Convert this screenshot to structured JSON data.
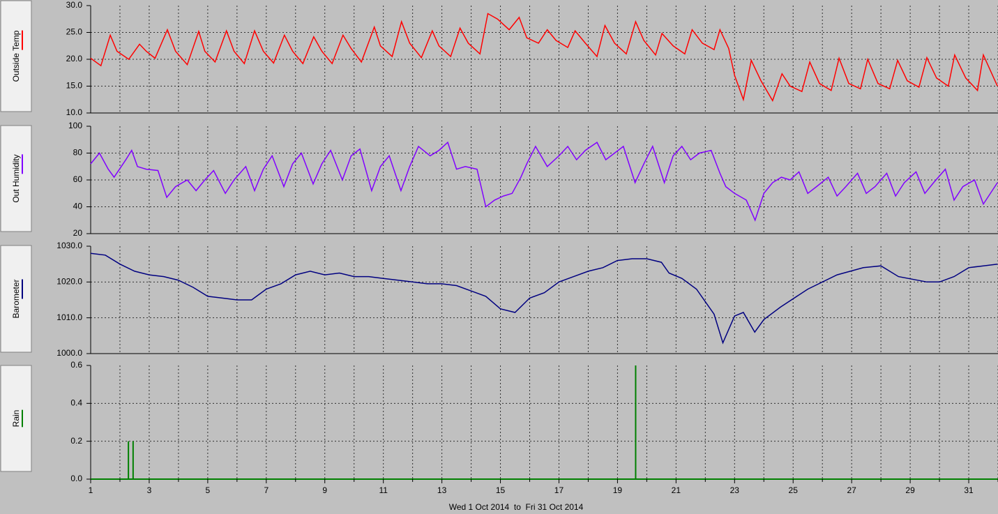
{
  "chart_data": [
    {
      "type": "line",
      "ylabel": "Outside Temp",
      "color": "#ff0000",
      "x": [
        1,
        1.35,
        1.67,
        1.9,
        2.3,
        2.67,
        2.9,
        3.2,
        3.62,
        3.9,
        4.3,
        4.69,
        4.9,
        5.25,
        5.64,
        5.9,
        6.25,
        6.6,
        6.9,
        7.25,
        7.62,
        7.9,
        8.25,
        8.62,
        8.9,
        9.25,
        9.62,
        9.9,
        10.25,
        10.69,
        10.9,
        11.3,
        11.62,
        11.9,
        12.3,
        12.67,
        12.9,
        13.3,
        13.62,
        13.9,
        14.3,
        14.57,
        14.9,
        15.3,
        15.64,
        15.9,
        16.3,
        16.6,
        16.9,
        17.3,
        17.55,
        17.9,
        18.3,
        18.57,
        18.9,
        19.3,
        19.62,
        19.9,
        20.3,
        20.52,
        20.9,
        21.3,
        21.55,
        21.9,
        22.3,
        22.5,
        22.8,
        23.0,
        23.3,
        23.57,
        23.9,
        24.3,
        24.62,
        24.9,
        25.3,
        25.57,
        25.9,
        26.3,
        26.57,
        26.9,
        27.3,
        27.55,
        27.9,
        28.3,
        28.57,
        28.9,
        29.3,
        29.57,
        29.9,
        30.3,
        30.52,
        30.9,
        31.3,
        31.5,
        31.98
      ],
      "values": [
        20.2,
        18.8,
        24.5,
        21.5,
        20,
        22.8,
        21.5,
        20.2,
        25.5,
        21.5,
        19,
        25.2,
        21.5,
        19.5,
        25.3,
        21.5,
        19.2,
        25.3,
        21.5,
        19.3,
        24.5,
        21.5,
        19.2,
        24.2,
        21.5,
        19.2,
        24.5,
        22,
        19.5,
        26,
        22.5,
        20.5,
        27,
        23,
        20.3,
        25.3,
        22.5,
        20.5,
        25.8,
        23,
        21,
        28.5,
        27.5,
        25.5,
        27.8,
        24,
        23,
        25.5,
        23.5,
        22.2,
        25.3,
        23,
        20.5,
        26.3,
        23,
        21,
        27,
        23.5,
        20.8,
        24.8,
        22.5,
        21,
        25.5,
        23,
        21.8,
        25.5,
        22,
        17,
        12.5,
        19.8,
        16,
        12.3,
        17.3,
        15,
        14,
        19.5,
        15.5,
        14.2,
        20.2,
        15.5,
        14.5,
        20,
        15.5,
        14.5,
        19.8,
        16,
        14.8,
        20.3,
        16.5,
        15,
        20.8,
        16.5,
        14.2,
        20.8,
        15
      ],
      "ylim": [
        10,
        30
      ],
      "yticks": [
        {
          "value": 10,
          "label": "10.0"
        },
        {
          "value": 15,
          "label": "15.0"
        },
        {
          "value": 20,
          "label": "20.0"
        },
        {
          "value": 25,
          "label": "25.0"
        },
        {
          "value": 30,
          "label": "30.0"
        }
      ]
    },
    {
      "type": "line",
      "ylabel": "Out Humidity",
      "color": "#8000ff",
      "x": [
        1,
        1.3,
        1.6,
        1.8,
        2.2,
        2.4,
        2.6,
        2.9,
        3.3,
        3.6,
        3.9,
        4.3,
        4.6,
        4.9,
        5.2,
        5.6,
        5.9,
        6.3,
        6.6,
        6.9,
        7.2,
        7.6,
        7.9,
        8.2,
        8.6,
        8.9,
        9.2,
        9.6,
        9.9,
        10.2,
        10.6,
        10.9,
        11.2,
        11.6,
        11.9,
        12.2,
        12.6,
        12.9,
        13.2,
        13.5,
        13.8,
        14.2,
        14.5,
        14.8,
        15.1,
        15.4,
        15.7,
        15.9,
        16.2,
        16.6,
        17.0,
        17.3,
        17.6,
        17.9,
        18.3,
        18.6,
        18.9,
        19.2,
        19.6,
        19.9,
        20.2,
        20.6,
        20.9,
        21.2,
        21.5,
        21.8,
        22.2,
        22.5,
        22.7,
        23.0,
        23.4,
        23.7,
        24.0,
        24.3,
        24.6,
        24.9,
        25.2,
        25.5,
        25.8,
        26.2,
        26.5,
        26.8,
        27.2,
        27.5,
        27.8,
        28.2,
        28.5,
        28.8,
        29.2,
        29.5,
        29.8,
        30.2,
        30.5,
        30.8,
        31.2,
        31.5,
        31.98
      ],
      "values": [
        72,
        80,
        68,
        62,
        75,
        82,
        70,
        68,
        67,
        47,
        55,
        60,
        52,
        60,
        67,
        50,
        60,
        70,
        52,
        68,
        78,
        55,
        72,
        80,
        57,
        72,
        82,
        60,
        78,
        83,
        52,
        70,
        78,
        52,
        70,
        85,
        78,
        82,
        88,
        68,
        70,
        68,
        40,
        45,
        48,
        50,
        62,
        72,
        85,
        70,
        78,
        85,
        75,
        82,
        88,
        75,
        80,
        85,
        58,
        72,
        85,
        58,
        78,
        85,
        75,
        80,
        82,
        65,
        55,
        50,
        45,
        30,
        50,
        58,
        62,
        60,
        66,
        50,
        55,
        62,
        48,
        55,
        65,
        50,
        55,
        65,
        48,
        58,
        66,
        50,
        58,
        68,
        45,
        55,
        60,
        42,
        58
      ],
      "ylim": [
        20,
        100
      ],
      "yticks": [
        20,
        40,
        60,
        80,
        100
      ]
    },
    {
      "type": "line",
      "ylabel": "Barometer",
      "color": "#000080",
      "x": [
        1,
        1.5,
        2,
        2.5,
        3,
        3.5,
        4,
        4.5,
        5,
        5.5,
        6,
        6.5,
        7,
        7.5,
        8,
        8.5,
        9,
        9.5,
        10,
        10.5,
        11,
        11.5,
        12,
        12.5,
        13,
        13.5,
        14,
        14.5,
        15,
        15.5,
        16,
        16.5,
        17,
        17.5,
        18,
        18.5,
        19,
        19.5,
        20,
        20.5,
        20.76,
        21.2,
        21.7,
        22.3,
        22.6,
        23.0,
        23.3,
        23.69,
        24.0,
        24.57,
        25.5,
        26.5,
        27.4,
        28.0,
        28.6,
        29.57,
        30.0,
        30.5,
        31,
        31.5,
        31.98
      ],
      "values": [
        1028,
        1027.5,
        1025,
        1023,
        1022,
        1021.5,
        1020.5,
        1018.5,
        1016,
        1015.5,
        1015,
        1015,
        1018,
        1019.5,
        1022,
        1023,
        1022,
        1022.5,
        1021.5,
        1021.5,
        1021,
        1020.5,
        1020,
        1019.5,
        1019.5,
        1019,
        1017.5,
        1016,
        1012.5,
        1011.5,
        1015.5,
        1017,
        1020,
        1021.5,
        1023,
        1024,
        1026,
        1026.5,
        1026.5,
        1025.5,
        1022.5,
        1021,
        1018,
        1011,
        1003,
        1010.5,
        1011.5,
        1006,
        1009.5,
        1013,
        1018,
        1022,
        1024,
        1024.5,
        1021.5,
        1020,
        1020,
        1021.5,
        1024,
        1024.5,
        1025
      ],
      "ylim": [
        1000,
        1030
      ],
      "yticks": [
        {
          "value": 1000,
          "label": "1000.0"
        },
        {
          "value": 1010,
          "label": "1010.0"
        },
        {
          "value": 1020,
          "label": "1020.0"
        },
        {
          "value": 1030,
          "label": "1030.0"
        }
      ]
    },
    {
      "type": "bar",
      "ylabel": "Rain",
      "color": "#008000",
      "x": [
        2.29,
        2.45,
        19.62
      ],
      "values": [
        0.2,
        0.2,
        0.6
      ],
      "ylim": [
        0,
        0.6
      ],
      "yticks": [
        {
          "value": 0,
          "label": "0.0"
        },
        0.2,
        0.4,
        0.6
      ],
      "xlabel": "Wed 1 Oct 2014  to  Fri 31 Oct 2014",
      "xlim": [
        1,
        32
      ],
      "xticks": [
        1,
        3,
        5,
        7,
        9,
        11,
        13,
        15,
        17,
        19,
        21,
        23,
        25,
        27,
        29,
        31
      ],
      "x_minor_ticks": [
        2,
        4,
        6,
        8,
        10,
        12,
        14,
        16,
        18,
        20,
        22,
        24,
        26,
        28,
        30,
        32
      ]
    }
  ]
}
